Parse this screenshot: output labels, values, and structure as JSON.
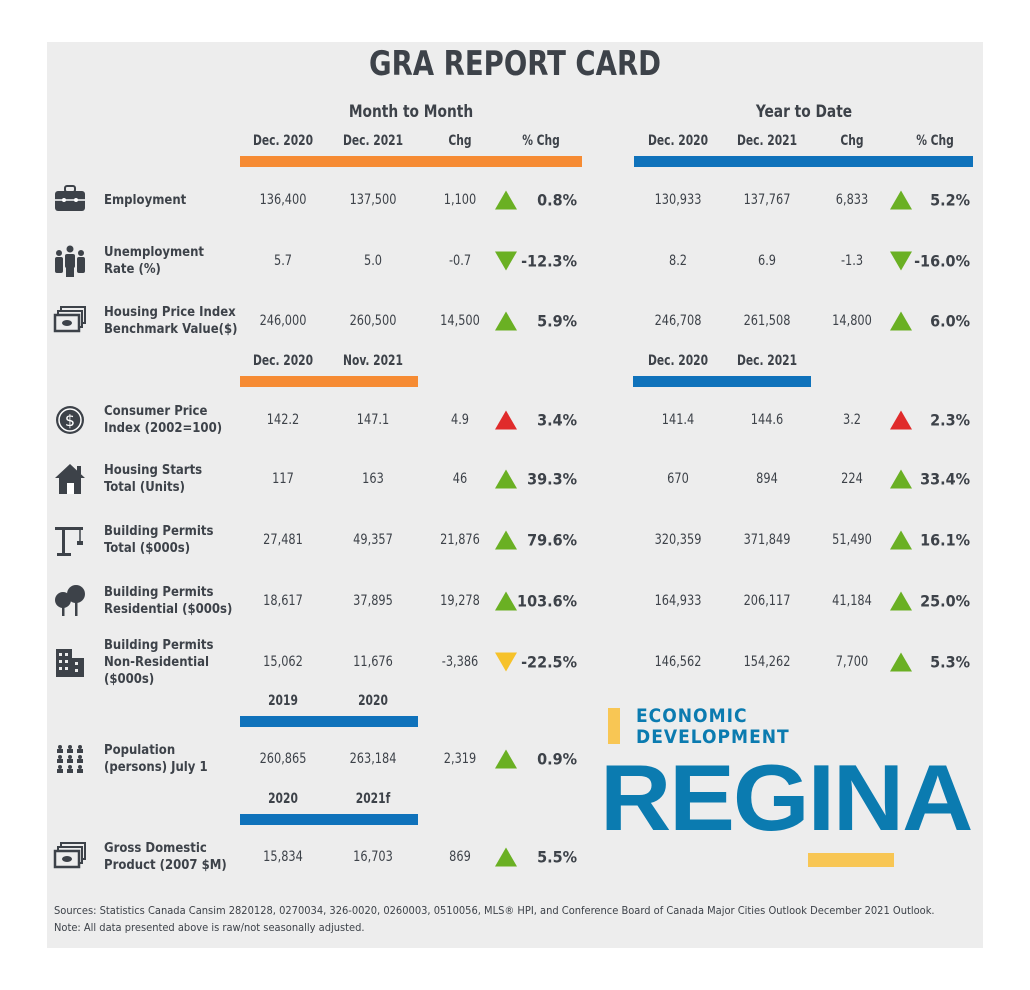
{
  "title": "GRA REPORT CARD",
  "sections": {
    "month": "Month to Month",
    "ytd": "Year to Date"
  },
  "headers": {
    "month_top": [
      "Dec. 2020",
      "Dec. 2021",
      "Chg",
      "% Chg"
    ],
    "ytd_top": [
      "Dec.  2020",
      "Dec. 2021",
      "Chg",
      "% Chg"
    ],
    "month_mid": [
      "Dec. 2020",
      "Nov. 2021"
    ],
    "ytd_mid": [
      "Dec. 2020",
      "Dec. 2021"
    ],
    "pop": [
      "2019",
      "2020"
    ],
    "gdp": [
      "2020",
      "2021f"
    ]
  },
  "colors": {
    "up": "#6ab023",
    "down_good": "#6ab023",
    "up_bad": "#e02b2b",
    "down_bad": "#f6c22a",
    "orange": "#f68b33",
    "blue": "#0f72bb"
  },
  "rows": [
    {
      "icon": "briefcase-icon",
      "label": [
        "Employment"
      ],
      "m": [
        "136,400",
        "137,500",
        "1,100",
        "0.8%"
      ],
      "m_dir": "up",
      "m_color": "#6ab023",
      "y": [
        "130,933",
        "137,767",
        "6,833",
        "5.2%"
      ],
      "y_dir": "up",
      "y_color": "#6ab023"
    },
    {
      "icon": "people-icon",
      "label": [
        "Unemployment",
        "Rate (%)"
      ],
      "m": [
        "5.7",
        "5.0",
        "-0.7",
        "-12.3%"
      ],
      "m_dir": "down",
      "m_color": "#6ab023",
      "y": [
        "8.2",
        "6.9",
        "-1.3",
        "-16.0%"
      ],
      "y_dir": "down",
      "y_color": "#6ab023"
    },
    {
      "icon": "money-icon",
      "label": [
        "Housing Price Index",
        "Benchmark Value($)"
      ],
      "m": [
        "246,000",
        "260,500",
        "14,500",
        "5.9%"
      ],
      "m_dir": "up",
      "m_color": "#6ab023",
      "y": [
        "246,708",
        "261,508",
        "14,800",
        "6.0%"
      ],
      "y_dir": "up",
      "y_color": "#6ab023"
    },
    {
      "icon": "dollar-coin-icon",
      "label": [
        "Consumer Price",
        "Index (2002=100)"
      ],
      "m": [
        "142.2",
        "147.1",
        "4.9",
        "3.4%"
      ],
      "m_dir": "up",
      "m_color": "#e02b2b",
      "y": [
        "141.4",
        "144.6",
        "3.2",
        "2.3%"
      ],
      "y_dir": "up",
      "y_color": "#e02b2b"
    },
    {
      "icon": "house-icon",
      "label": [
        "Housing Starts",
        "Total (Units)"
      ],
      "m": [
        "117",
        "163",
        "46",
        "39.3%"
      ],
      "m_dir": "up",
      "m_color": "#6ab023",
      "y": [
        "670",
        "894",
        "224",
        "33.4%"
      ],
      "y_dir": "up",
      "y_color": "#6ab023"
    },
    {
      "icon": "crane-icon",
      "label": [
        "Building Permits",
        "Total ($000s)"
      ],
      "m": [
        "27,481",
        "49,357",
        "21,876",
        "79.6%"
      ],
      "m_dir": "up",
      "m_color": "#6ab023",
      "y": [
        "320,359",
        "371,849",
        "51,490",
        "16.1%"
      ],
      "y_dir": "up",
      "y_color": "#6ab023"
    },
    {
      "icon": "trees-icon",
      "label": [
        "Building Permits",
        "Residential ($000s)"
      ],
      "m": [
        "18,617",
        "37,895",
        "19,278",
        "103.6%"
      ],
      "m_dir": "up",
      "m_color": "#6ab023",
      "y": [
        "164,933",
        "206,117",
        "41,184",
        "25.0%"
      ],
      "y_dir": "up",
      "y_color": "#6ab023"
    },
    {
      "icon": "office-building-icon",
      "label": [
        "Building Permits",
        "Non-Residential",
        "($000s)"
      ],
      "m": [
        "15,062",
        "11,676",
        "-3,386",
        "-22.5%"
      ],
      "m_dir": "down",
      "m_color": "#f6c22a",
      "y": [
        "146,562",
        "154,262",
        "7,700",
        "5.3%"
      ],
      "y_dir": "up",
      "y_color": "#6ab023"
    },
    {
      "icon": "population-icon",
      "label": [
        "Population",
        "(persons) July 1"
      ],
      "m": [
        "260,865",
        "263,184",
        "2,319",
        "0.9%"
      ],
      "m_dir": "up",
      "m_color": "#6ab023"
    },
    {
      "icon": "money-icon",
      "label": [
        "Gross Domestic",
        "Product (2007 $M)"
      ],
      "m": [
        "15,834",
        "16,703",
        "869",
        "5.5%"
      ],
      "m_dir": "up",
      "m_color": "#6ab023"
    }
  ],
  "logo": {
    "line1": "ECONOMIC",
    "line2": "DEVELOPMENT",
    "name": "REGINA"
  },
  "sources": "Sources: Statistics Canada Cansim 2820128, 0270034, 326-0020, 0260003, 0510056, MLS® HPI, and Conference Board of Canada Major Cities Outlook December 2021 Outlook. Note: All data presented above is raw/not seasonally adjusted."
}
